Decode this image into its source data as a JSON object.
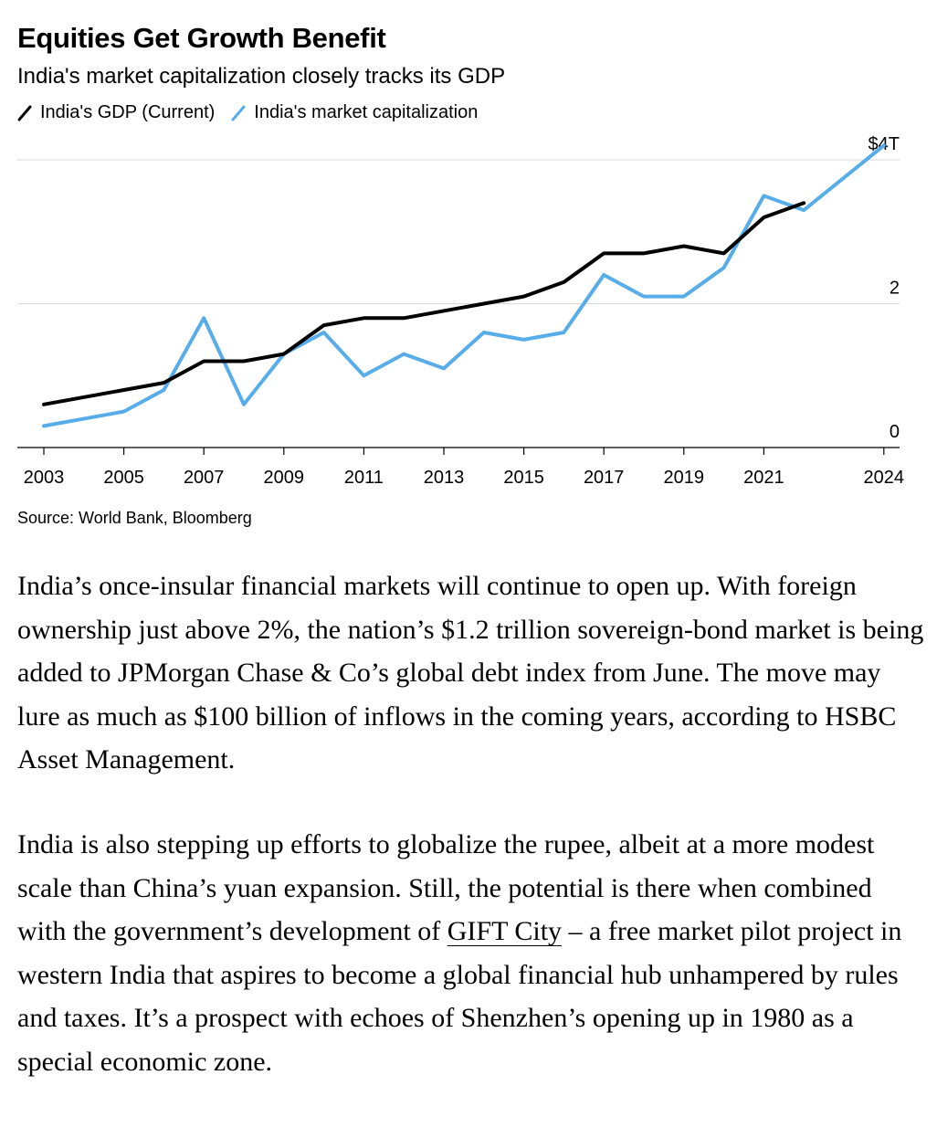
{
  "chart_data": {
    "type": "line",
    "title": "Equities Get Growth Benefit",
    "subtitle": "India's market capitalization closely tracks its GDP",
    "source": "Source: World Bank, Bloomberg",
    "x_tick_labels": [
      "2003",
      "2005",
      "2007",
      "2009",
      "2011",
      "2013",
      "2015",
      "2017",
      "2019",
      "2021",
      "2024"
    ],
    "y_ticks": [
      {
        "value": 0,
        "label": "0"
      },
      {
        "value": 2,
        "label": "2"
      },
      {
        "value": 4,
        "label": "$4T"
      }
    ],
    "ylim": [
      0,
      4
    ],
    "grid": true,
    "legend_position": "top-left",
    "series": [
      {
        "name": "India's GDP (Current)",
        "color": "#000000",
        "points": [
          {
            "x": "2003",
            "y": 0.6
          },
          {
            "x": "2006",
            "y": 0.9
          },
          {
            "x": "2007",
            "y": 1.2
          },
          {
            "x": "2008",
            "y": 1.2
          },
          {
            "x": "2009",
            "y": 1.3
          },
          {
            "x": "2010",
            "y": 1.7
          },
          {
            "x": "2011",
            "y": 1.8
          },
          {
            "x": "2012",
            "y": 1.8
          },
          {
            "x": "2015",
            "y": 2.1
          },
          {
            "x": "2016",
            "y": 2.3
          },
          {
            "x": "2017",
            "y": 2.7
          },
          {
            "x": "2018",
            "y": 2.7
          },
          {
            "x": "2019",
            "y": 2.8
          },
          {
            "x": "2020",
            "y": 2.7
          },
          {
            "x": "2021",
            "y": 3.2
          },
          {
            "x": "2022",
            "y": 3.4
          }
        ]
      },
      {
        "name": "India's market capitalization",
        "color": "#56adea",
        "points": [
          {
            "x": "2003",
            "y": 0.3
          },
          {
            "x": "2005",
            "y": 0.5
          },
          {
            "x": "2006",
            "y": 0.8
          },
          {
            "x": "2007",
            "y": 1.8
          },
          {
            "x": "2008",
            "y": 0.6
          },
          {
            "x": "2009",
            "y": 1.3
          },
          {
            "x": "2010",
            "y": 1.6
          },
          {
            "x": "2011",
            "y": 1.0
          },
          {
            "x": "2012",
            "y": 1.3
          },
          {
            "x": "2013",
            "y": 1.1
          },
          {
            "x": "2014",
            "y": 1.6
          },
          {
            "x": "2015",
            "y": 1.5
          },
          {
            "x": "2016",
            "y": 1.6
          },
          {
            "x": "2017",
            "y": 2.4
          },
          {
            "x": "2018",
            "y": 2.1
          },
          {
            "x": "2019",
            "y": 2.1
          },
          {
            "x": "2020",
            "y": 2.5
          },
          {
            "x": "2021",
            "y": 3.5
          },
          {
            "x": "2022",
            "y": 3.3
          },
          {
            "x": "2024",
            "y": 4.2
          }
        ]
      }
    ]
  },
  "article": {
    "paragraph1": "India’s once-insular financial markets will continue to open up. With foreign ownership just above 2%, the nation’s $1.2 trillion sovereign-bond market is being added to JPMorgan Chase & Co’s global debt index from June. The move may lure as much as $100 billion of inflows in the coming years, according to HSBC Asset Management.",
    "paragraph2_before_link": "India is also stepping up efforts to globalize the rupee, albeit at a more modest scale than China’s yuan expansion. Still, the potential is there when combined with the government’s development of ",
    "paragraph2_link": "GIFT City",
    "paragraph2_after_link": " – a free market pilot project in western India that aspires to become a global financial hub unhampered by rules and taxes. It’s a prospect with echoes of Shenzhen’s opening up in 1980 as a special economic zone."
  }
}
